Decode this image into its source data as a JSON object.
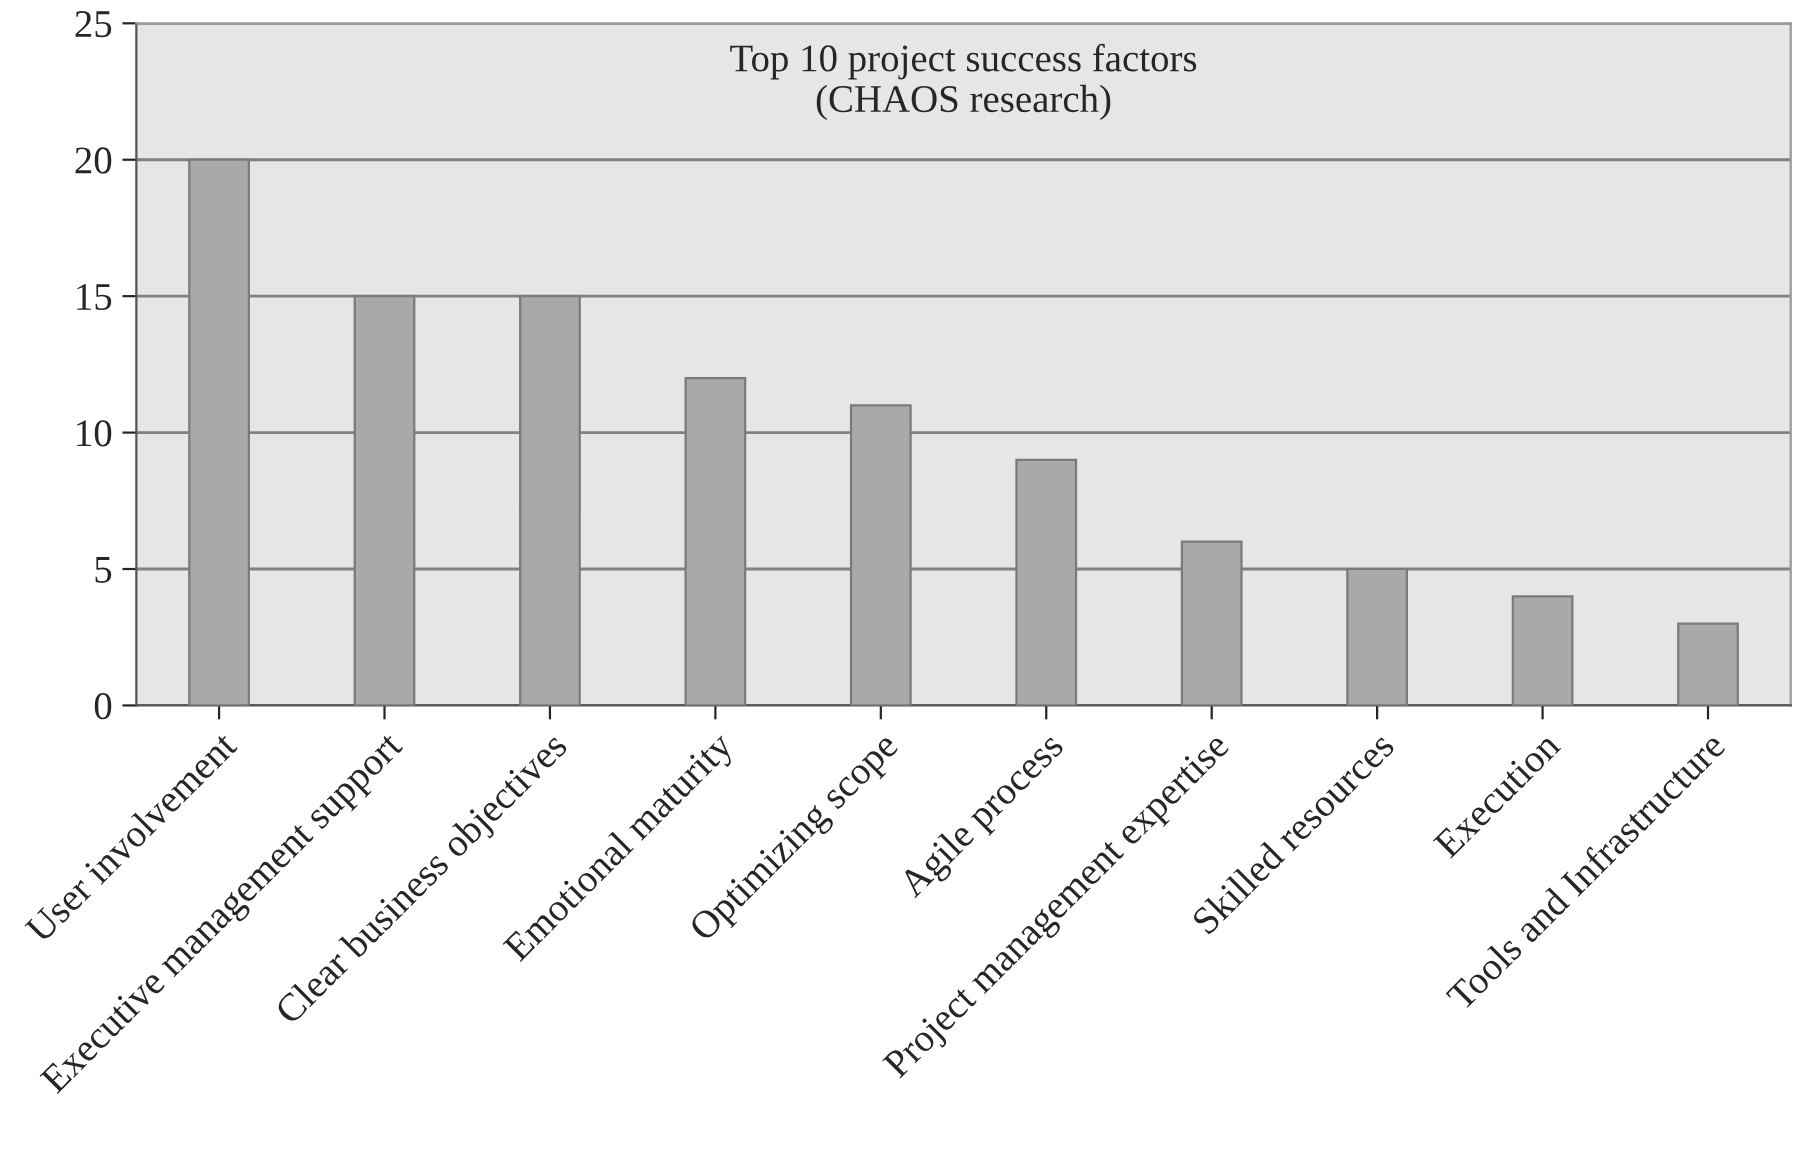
{
  "chart_data": {
    "type": "bar",
    "title": "Top 10 project success factors\n(CHAOS research)",
    "categories": [
      "User involvement",
      "Executive management support",
      "Clear business objectives",
      "Emotional maturity",
      "Optimizing scope",
      "Agile process",
      "Project management expertise",
      "Skilled resources",
      "Execution",
      "Tools and Infrastructure"
    ],
    "values": [
      20,
      15,
      15,
      12,
      11,
      9,
      6,
      5,
      4,
      3
    ],
    "color": "#a9a9a9",
    "ylim": [
      0,
      25
    ],
    "yticks": [
      0,
      5,
      10,
      15,
      20,
      25
    ],
    "grid": "y"
  }
}
